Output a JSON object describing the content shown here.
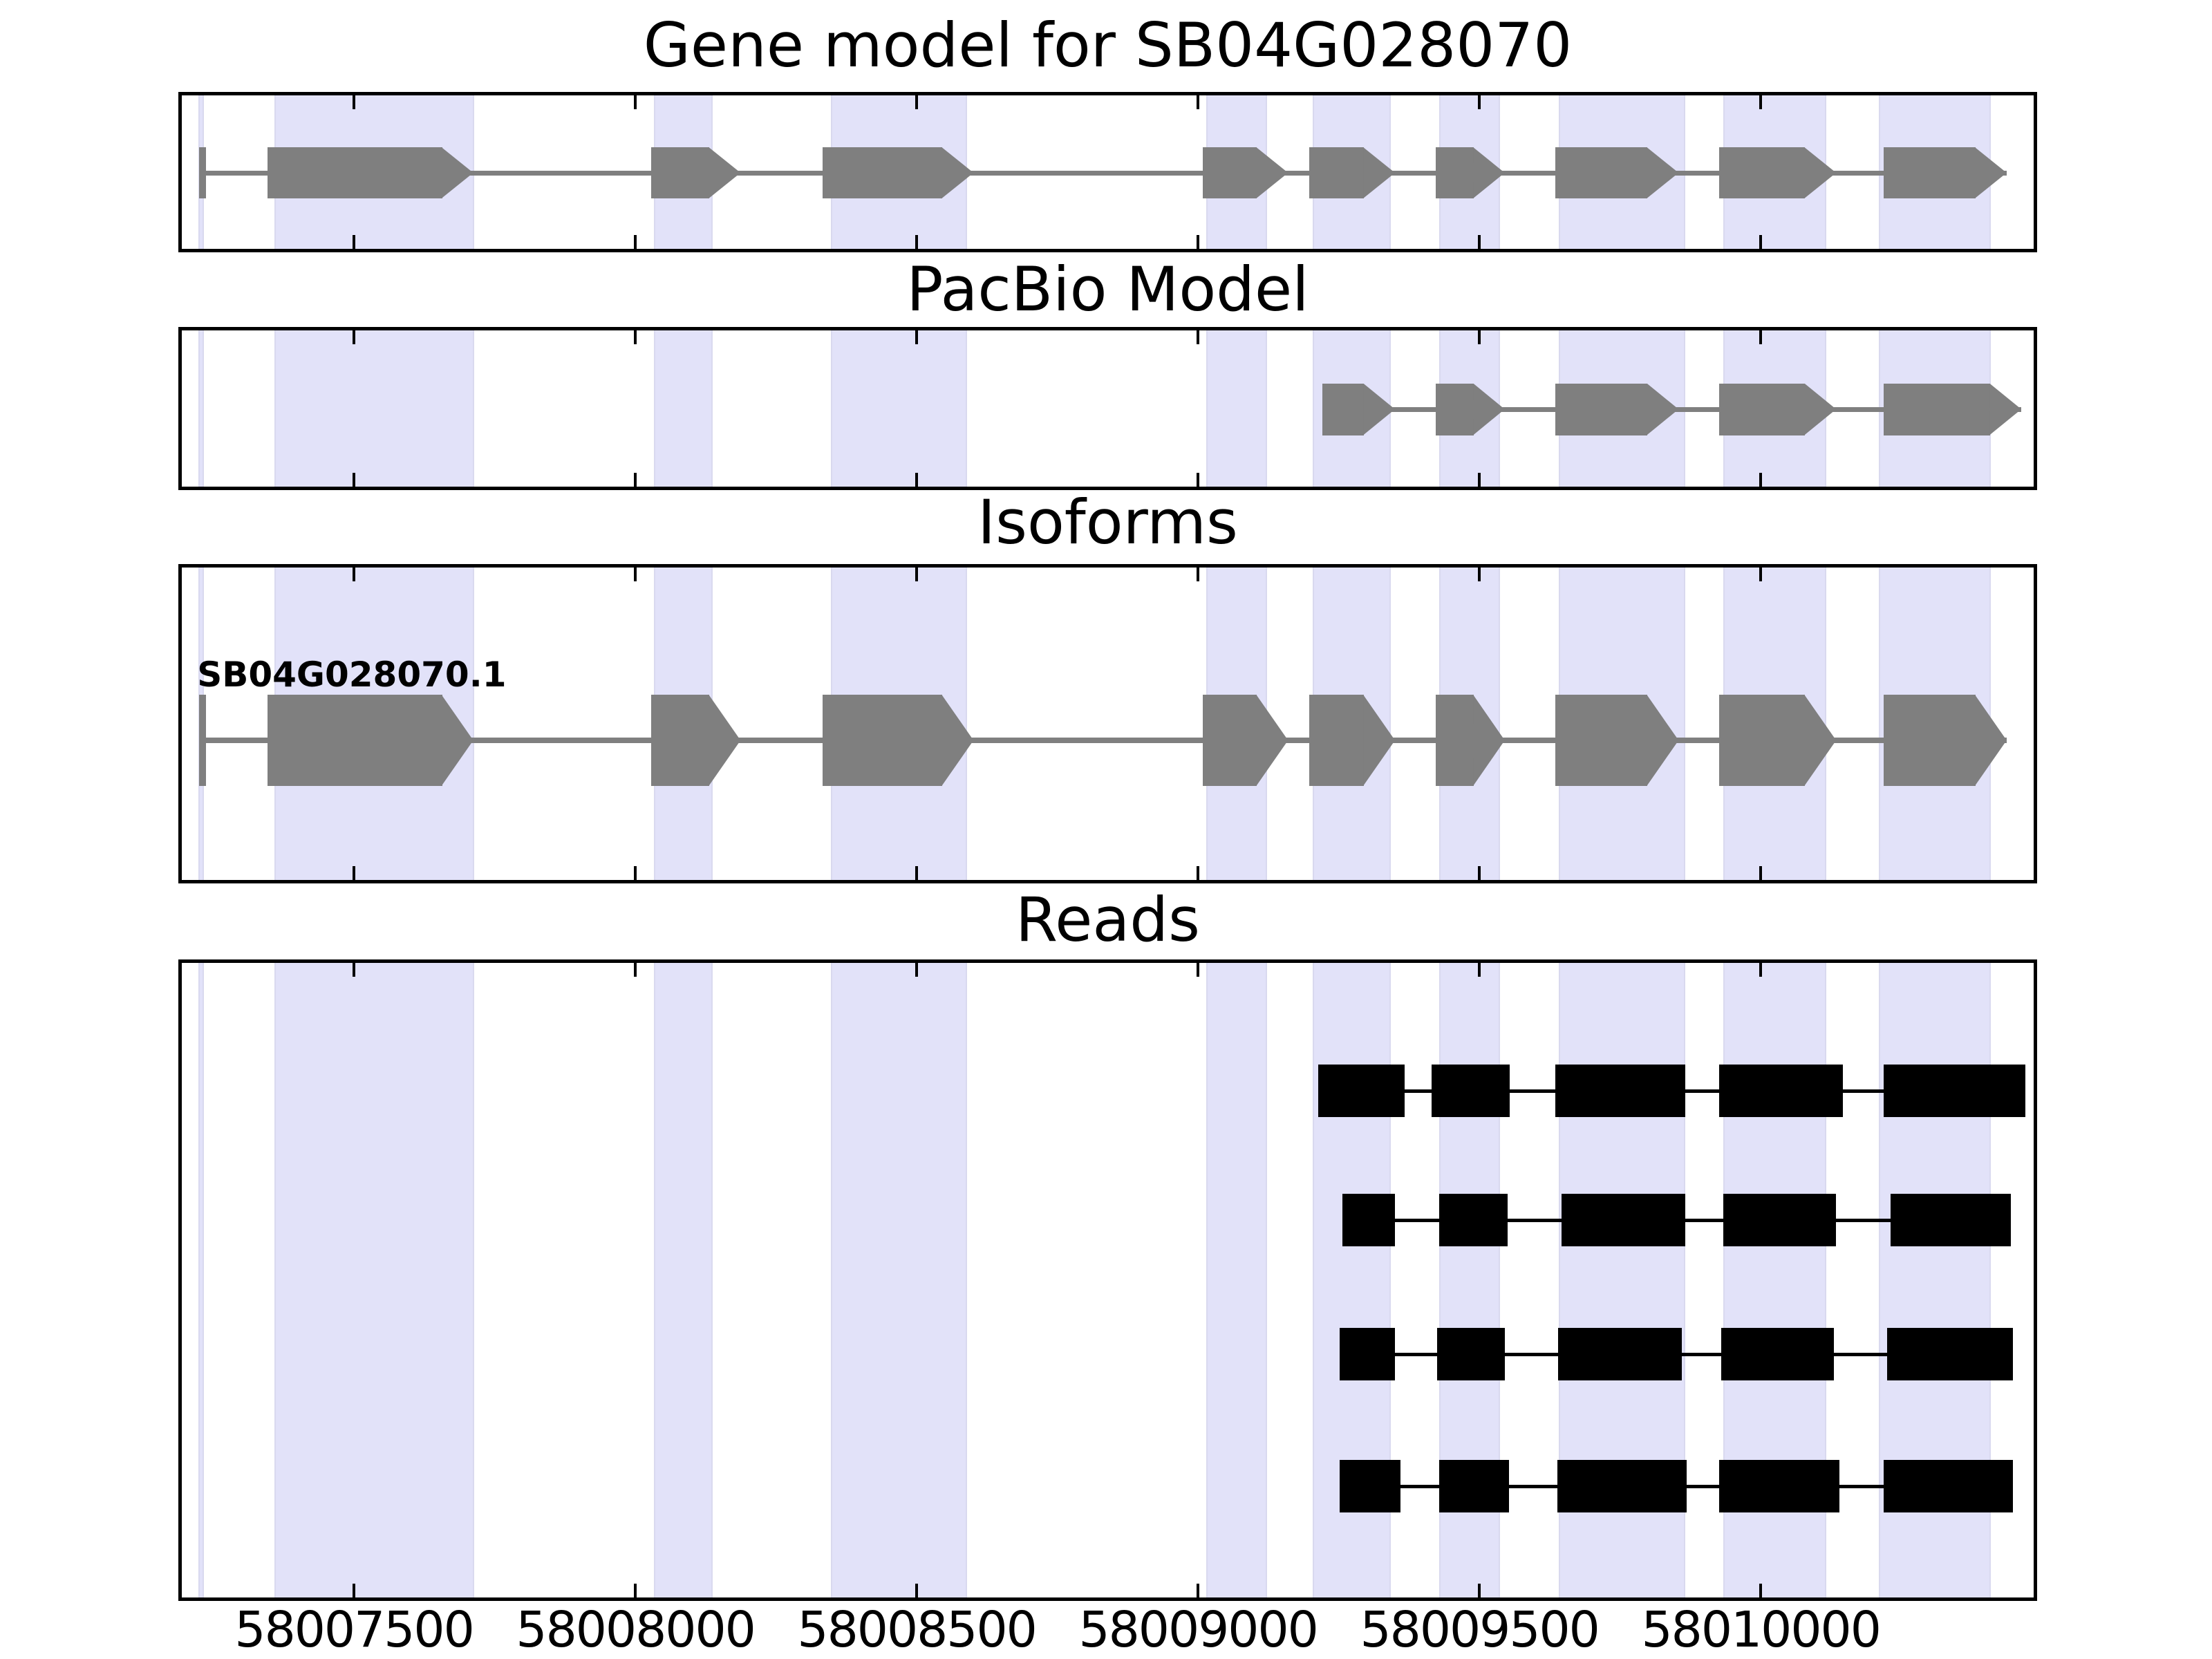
{
  "chart_data": {
    "type": "gene-structure-tracks",
    "figure_title": "Gene model for SB04G028070",
    "x_axis": {
      "min": 58007194,
      "max": 58010485,
      "ticks": [
        58007500,
        58008000,
        58008500,
        58009000,
        58009500,
        58010000
      ],
      "tick_labels": [
        "58007500",
        "58008000",
        "58008500",
        "58009000",
        "58009500",
        "58010000"
      ]
    },
    "colors": {
      "highlight_band": "#e2e2f9",
      "highlight_band_edge": "#d9d9ef",
      "model_gray": "#7f7f7f",
      "read_black": "#000000",
      "panel_border": "#000000"
    },
    "highlight_bands": [
      [
        58007224,
        58007233
      ],
      [
        58007359,
        58007714
      ],
      [
        58008033,
        58008138
      ],
      [
        58008347,
        58008589
      ],
      [
        58009014,
        58009123
      ],
      [
        58009204,
        58009343
      ],
      [
        58009428,
        58009537
      ],
      [
        58009641,
        58009866
      ],
      [
        58009934,
        58010117
      ],
      [
        58010210,
        58010409
      ]
    ],
    "tracks": [
      {
        "title": "Gene model for SB04G028070",
        "kind": "gene_model",
        "start_marker": [
          58007225,
          58007237
        ],
        "exons": [
          [
            58007346,
            58007712
          ],
          [
            58008028,
            58008187
          ],
          [
            58008333,
            58008601
          ],
          [
            58009009,
            58009160
          ],
          [
            58009197,
            58009350
          ],
          [
            58009423,
            58009545
          ],
          [
            58009635,
            58009854
          ],
          [
            58009926,
            58010134
          ],
          [
            58010219,
            58010437
          ]
        ]
      },
      {
        "title": "PacBio Model",
        "kind": "pacbio_model",
        "exons": [
          [
            58009221,
            58009350
          ],
          [
            58009423,
            58009545
          ],
          [
            58009635,
            58009854
          ],
          [
            58009926,
            58010134
          ],
          [
            58010219,
            58010463
          ]
        ]
      },
      {
        "title": "Isoforms",
        "kind": "isoforms",
        "isoforms": [
          {
            "label": "SB04G028070.1",
            "start_marker": [
              58007225,
              58007237
            ],
            "exons": [
              [
                58007346,
                58007712
              ],
              [
                58008028,
                58008187
              ],
              [
                58008333,
                58008601
              ],
              [
                58009009,
                58009160
              ],
              [
                58009197,
                58009350
              ],
              [
                58009423,
                58009545
              ],
              [
                58009635,
                58009854
              ],
              [
                58009926,
                58010134
              ],
              [
                58010219,
                58010437
              ]
            ]
          }
        ]
      },
      {
        "title": "Reads",
        "kind": "reads",
        "reads": [
          [
            [
              58009214,
              58009367
            ],
            [
              58009415,
              58009554
            ],
            [
              58009635,
              58009866
            ],
            [
              58009926,
              58010146
            ],
            [
              58010219,
              58010470
            ]
          ],
          [
            [
              58009257,
              58009350
            ],
            [
              58009428,
              58009550
            ],
            [
              58009646,
              58009866
            ],
            [
              58009934,
              58010134
            ],
            [
              58010231,
              58010445
            ]
          ],
          [
            [
              58009252,
              58009350
            ],
            [
              58009425,
              58009545
            ],
            [
              58009640,
              58009860
            ],
            [
              58009930,
              58010130
            ],
            [
              58010225,
              58010448
            ]
          ],
          [
            [
              58009252,
              58009360
            ],
            [
              58009428,
              58009553
            ],
            [
              58009638,
              58009868
            ],
            [
              58009926,
              58010140
            ],
            [
              58010219,
              58010448
            ]
          ]
        ]
      }
    ]
  }
}
